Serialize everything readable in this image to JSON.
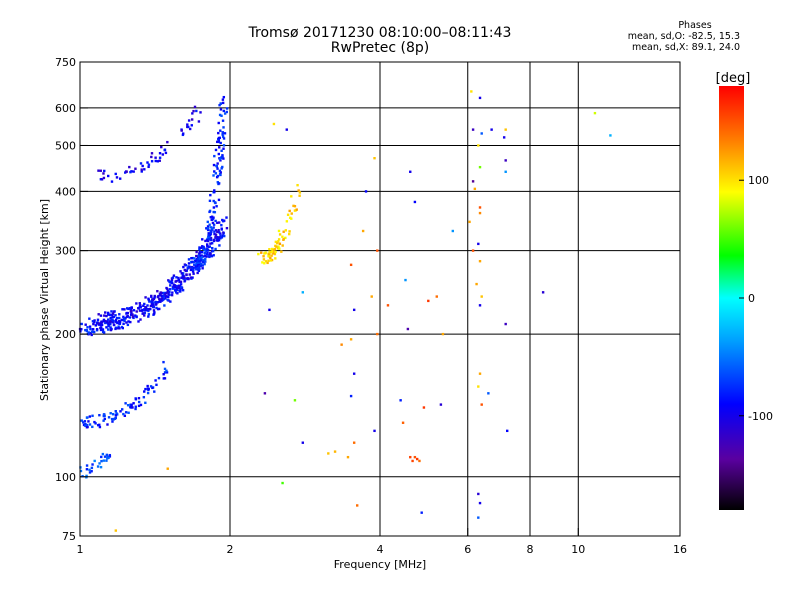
{
  "chart_data": {
    "type": "scatter",
    "title": "Tromsø 20171230 08:10:00–08:11:43",
    "subtitle": "RwPretec (8p)",
    "xlabel": "Frequency [MHz]",
    "ylabel": "Stationary phase Virtual Height [km]",
    "x_scale": "log",
    "y_scale": "log",
    "xlim": [
      1,
      16
    ],
    "ylim": [
      75,
      750
    ],
    "x_ticks": [
      1,
      2,
      4,
      6,
      8,
      10,
      16
    ],
    "y_ticks": [
      75,
      100,
      200,
      300,
      400,
      500,
      600,
      750
    ],
    "grid": true,
    "colorbar": {
      "label": "[deg]",
      "range": [
        -180,
        180
      ],
      "ticks": [
        -100,
        0,
        100
      ]
    },
    "stats": {
      "title": "Phases",
      "line1": "mean, sd,O: -82.5, 15.3",
      "line2": "mean, sd,X:  89.1, 24.0"
    },
    "series": [
      {
        "f_range": [
          1.0,
          1.95
        ],
        "h_start": 205,
        "h_end": 330,
        "phase": -88,
        "count": 260
      },
      {
        "f_range": [
          1.05,
          1.95
        ],
        "h_start": 215,
        "h_end": 350,
        "phase": -95,
        "count": 220
      },
      {
        "f_range": [
          1.7,
          1.95
        ],
        "h_start": 280,
        "h_end": 640,
        "phase": -80,
        "count": 180
      },
      {
        "f_range": [
          1.1,
          1.75
        ],
        "h_start": 430,
        "h_end": 600,
        "phase": -98,
        "count": 60
      },
      {
        "f_range": [
          2.3,
          2.75
        ],
        "h_start": 290,
        "h_end": 410,
        "phase": 105,
        "count": 70
      },
      {
        "f_range": [
          1.0,
          1.5
        ],
        "h_start": 130,
        "h_end": 170,
        "phase": -80,
        "count": 90
      },
      {
        "f_range": [
          1.0,
          1.15
        ],
        "h_start": 102,
        "h_end": 112,
        "phase": -65,
        "count": 30
      }
    ],
    "scattered_points": [
      {
        "x": 2.45,
        "y": 555,
        "phase": 100
      },
      {
        "x": 2.6,
        "y": 540,
        "phase": -100
      },
      {
        "x": 3.9,
        "y": 470,
        "phase": 110
      },
      {
        "x": 3.75,
        "y": 400,
        "phase": -90
      },
      {
        "x": 4.6,
        "y": 440,
        "phase": -100
      },
      {
        "x": 4.7,
        "y": 380,
        "phase": -90
      },
      {
        "x": 5.6,
        "y": 330,
        "phase": -40
      },
      {
        "x": 3.7,
        "y": 330,
        "phase": 120
      },
      {
        "x": 3.95,
        "y": 300,
        "phase": 150
      },
      {
        "x": 3.5,
        "y": 280,
        "phase": 150
      },
      {
        "x": 4.5,
        "y": 260,
        "phase": -40
      },
      {
        "x": 3.85,
        "y": 240,
        "phase": 120
      },
      {
        "x": 3.55,
        "y": 225,
        "phase": -100
      },
      {
        "x": 4.15,
        "y": 230,
        "phase": 150
      },
      {
        "x": 5.2,
        "y": 240,
        "phase": 140
      },
      {
        "x": 4.55,
        "y": 205,
        "phase": -130
      },
      {
        "x": 5.0,
        "y": 235,
        "phase": 160
      },
      {
        "x": 2.4,
        "y": 225,
        "phase": -100
      },
      {
        "x": 2.8,
        "y": 245,
        "phase": -30
      },
      {
        "x": 3.5,
        "y": 195,
        "phase": 120
      },
      {
        "x": 3.35,
        "y": 190,
        "phase": 130
      },
      {
        "x": 3.95,
        "y": 200,
        "phase": 140
      },
      {
        "x": 5.35,
        "y": 200,
        "phase": 120
      },
      {
        "x": 2.35,
        "y": 150,
        "phase": -130
      },
      {
        "x": 2.7,
        "y": 145,
        "phase": 60
      },
      {
        "x": 3.5,
        "y": 148,
        "phase": -80
      },
      {
        "x": 3.55,
        "y": 165,
        "phase": -100
      },
      {
        "x": 4.4,
        "y": 145,
        "phase": -80
      },
      {
        "x": 4.9,
        "y": 140,
        "phase": 160
      },
      {
        "x": 5.3,
        "y": 142,
        "phase": -110
      },
      {
        "x": 3.9,
        "y": 125,
        "phase": -100
      },
      {
        "x": 2.8,
        "y": 118,
        "phase": -100
      },
      {
        "x": 4.45,
        "y": 130,
        "phase": 145
      },
      {
        "x": 3.55,
        "y": 118,
        "phase": 140
      },
      {
        "x": 3.25,
        "y": 113,
        "phase": 115
      },
      {
        "x": 3.15,
        "y": 112,
        "phase": 110
      },
      {
        "x": 3.45,
        "y": 110,
        "phase": 120
      },
      {
        "x": 4.6,
        "y": 110,
        "phase": 155
      },
      {
        "x": 4.75,
        "y": 109,
        "phase": 160
      },
      {
        "x": 4.65,
        "y": 108,
        "phase": 155
      },
      {
        "x": 4.7,
        "y": 110,
        "phase": 150
      },
      {
        "x": 4.8,
        "y": 108,
        "phase": 140
      },
      {
        "x": 2.55,
        "y": 97,
        "phase": 50
      },
      {
        "x": 3.6,
        "y": 87,
        "phase": 140
      },
      {
        "x": 4.85,
        "y": 84,
        "phase": -80
      },
      {
        "x": 1.5,
        "y": 104,
        "phase": 120
      },
      {
        "x": 1.18,
        "y": 77,
        "phase": 110
      },
      {
        "x": 6.1,
        "y": 650,
        "phase": 100
      },
      {
        "x": 6.35,
        "y": 630,
        "phase": -100
      },
      {
        "x": 6.15,
        "y": 540,
        "phase": -120
      },
      {
        "x": 6.4,
        "y": 530,
        "phase": -60
      },
      {
        "x": 6.7,
        "y": 540,
        "phase": -100
      },
      {
        "x": 7.15,
        "y": 540,
        "phase": 110
      },
      {
        "x": 7.1,
        "y": 520,
        "phase": -100
      },
      {
        "x": 6.3,
        "y": 500,
        "phase": 100
      },
      {
        "x": 7.15,
        "y": 465,
        "phase": -120
      },
      {
        "x": 6.35,
        "y": 450,
        "phase": 60
      },
      {
        "x": 7.15,
        "y": 440,
        "phase": -40
      },
      {
        "x": 6.15,
        "y": 420,
        "phase": -140
      },
      {
        "x": 6.2,
        "y": 405,
        "phase": 120
      },
      {
        "x": 6.35,
        "y": 370,
        "phase": 150
      },
      {
        "x": 6.05,
        "y": 345,
        "phase": 120
      },
      {
        "x": 6.35,
        "y": 360,
        "phase": 130
      },
      {
        "x": 6.3,
        "y": 310,
        "phase": -100
      },
      {
        "x": 6.15,
        "y": 300,
        "phase": 150
      },
      {
        "x": 6.35,
        "y": 285,
        "phase": 120
      },
      {
        "x": 6.25,
        "y": 255,
        "phase": 120
      },
      {
        "x": 6.4,
        "y": 240,
        "phase": 110
      },
      {
        "x": 6.35,
        "y": 230,
        "phase": -100
      },
      {
        "x": 7.15,
        "y": 210,
        "phase": -120
      },
      {
        "x": 6.35,
        "y": 165,
        "phase": 120
      },
      {
        "x": 6.3,
        "y": 155,
        "phase": 100
      },
      {
        "x": 6.6,
        "y": 150,
        "phase": -60
      },
      {
        "x": 6.4,
        "y": 142,
        "phase": 150
      },
      {
        "x": 7.2,
        "y": 125,
        "phase": -90
      },
      {
        "x": 6.3,
        "y": 92,
        "phase": -110
      },
      {
        "x": 6.35,
        "y": 88,
        "phase": -100
      },
      {
        "x": 6.3,
        "y": 82,
        "phase": -60
      },
      {
        "x": 8.5,
        "y": 245,
        "phase": -110
      },
      {
        "x": 10.8,
        "y": 585,
        "phase": 80
      },
      {
        "x": 11.6,
        "y": 525,
        "phase": -30
      }
    ]
  }
}
